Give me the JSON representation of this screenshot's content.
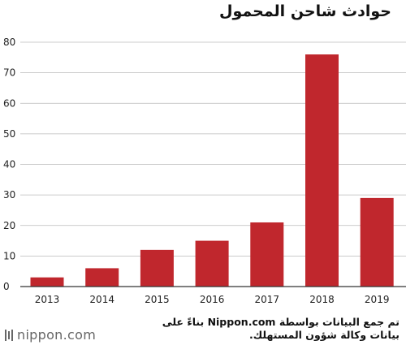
{
  "chart_data": {
    "type": "bar",
    "title": "حوادث شاحن المحمول",
    "categories": [
      "2013",
      "2014",
      "2015",
      "2016",
      "2017",
      "2018",
      "2019"
    ],
    "values": [
      3,
      6,
      12,
      15,
      21,
      76,
      29
    ],
    "ylim": [
      0,
      80
    ],
    "yticks": [
      0,
      10,
      20,
      30,
      40,
      50,
      60,
      70,
      80
    ],
    "grid": true,
    "bar_color": "#c0272d",
    "grid_color": "#bbbbbb"
  },
  "footer": {
    "note": "تم جمع البيانات بواسطة Nippon.com بناءً على بيانات وكالة شؤون المستهلك.",
    "brand": "nippon.com"
  }
}
